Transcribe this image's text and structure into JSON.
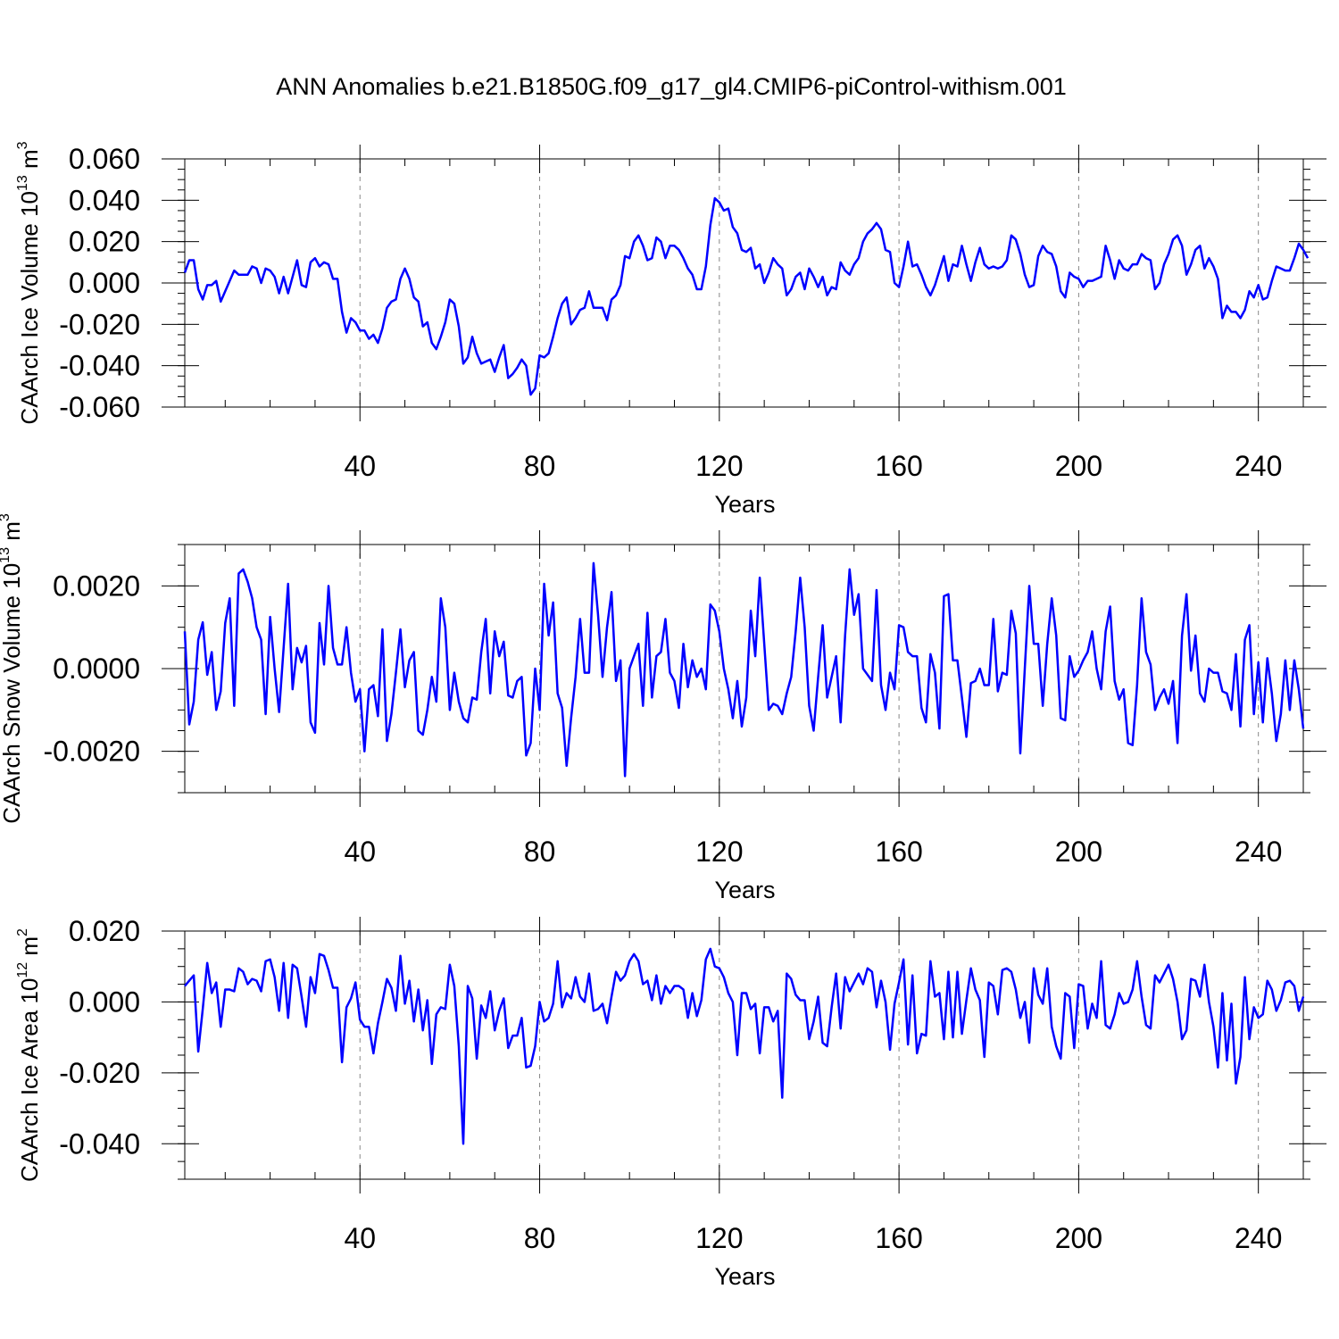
{
  "title": "ANN Anomalies b.e21.B1850G.f09_g17_gl4.CMIP6-piControl-withism.001",
  "colors": {
    "line": "#0000ff",
    "grid": "#888888",
    "axis": "#000000"
  },
  "chart_data": [
    {
      "type": "line",
      "ylabel": "CAArch Ice Volume 10",
      "ylabel_exp": "13",
      "ylabel_unit": " m",
      "ylabel_unit_exp": "3",
      "xlabel": "Years",
      "xlim": [
        1,
        250
      ],
      "ylim": [
        -0.06,
        0.06
      ],
      "xticks": [
        40,
        80,
        120,
        160,
        200,
        240
      ],
      "xtick_labels": [
        "40",
        "80",
        "120",
        "160",
        "200",
        "240"
      ],
      "yticks": [
        -0.06,
        -0.04,
        -0.02,
        0.0,
        0.02,
        0.04,
        0.06
      ],
      "ytick_labels": [
        "-0.060",
        "-0.040",
        "-0.020",
        "0.000",
        "0.020",
        "0.040",
        "0.060"
      ],
      "yminor": 0.005,
      "grid": "dashed vertical at major x ticks",
      "series": [
        {
          "name": "CAArch Ice Volume",
          "values": [
            0.005,
            0.011,
            0.011,
            -0.003,
            -0.008,
            -0.001,
            -0.001,
            0.001,
            -0.009,
            -0.004,
            0.001,
            0.006,
            0.004,
            0.004,
            0.004,
            0.008,
            0.007,
            0.0,
            0.007,
            0.006,
            0.003,
            -0.005,
            0.003,
            -0.005,
            0.003,
            0.011,
            -0.001,
            -0.002,
            0.01,
            0.012,
            0.008,
            0.01,
            0.009,
            0.002,
            0.002,
            -0.014,
            -0.024,
            -0.017,
            -0.019,
            -0.023,
            -0.023,
            -0.027,
            -0.025,
            -0.029,
            -0.022,
            -0.012,
            -0.009,
            -0.008,
            0.002,
            0.007,
            0.002,
            -0.007,
            -0.009,
            -0.021,
            -0.019,
            -0.029,
            -0.032,
            -0.026,
            -0.019,
            -0.008,
            -0.01,
            -0.021,
            -0.039,
            -0.036,
            -0.026,
            -0.034,
            -0.039,
            -0.038,
            -0.037,
            -0.043,
            -0.036,
            -0.03,
            -0.046,
            -0.044,
            -0.041,
            -0.037,
            -0.04,
            -0.054,
            -0.051,
            -0.035,
            -0.036,
            -0.034,
            -0.026,
            -0.017,
            -0.01,
            -0.007,
            -0.02,
            -0.017,
            -0.013,
            -0.012,
            -0.004,
            -0.012,
            -0.012,
            -0.012,
            -0.018,
            -0.008,
            -0.006,
            -0.001,
            0.013,
            0.012,
            0.02,
            0.023,
            0.018,
            0.011,
            0.012,
            0.022,
            0.02,
            0.012,
            0.018,
            0.018,
            0.016,
            0.012,
            0.007,
            0.004,
            -0.003,
            -0.003,
            0.008,
            0.028,
            0.041,
            0.039,
            0.035,
            0.036,
            0.027,
            0.024,
            0.016,
            0.015,
            0.017,
            0.007,
            0.009,
            0.0,
            0.005,
            0.012,
            0.009,
            0.007,
            -0.006,
            -0.003,
            0.003,
            0.005,
            -0.003,
            0.007,
            0.003,
            -0.002,
            0.003,
            -0.006,
            -0.002,
            -0.003,
            0.01,
            0.006,
            0.004,
            0.009,
            0.012,
            0.02,
            0.024,
            0.026,
            0.029,
            0.026,
            0.016,
            0.015,
            0.0,
            -0.002,
            0.008,
            0.02,
            0.008,
            0.009,
            0.004,
            -0.002,
            -0.006,
            -0.001,
            0.006,
            0.013,
            0.001,
            0.009,
            0.008,
            0.018,
            0.009,
            0.001,
            0.01,
            0.017,
            0.009,
            0.007,
            0.008,
            0.007,
            0.008,
            0.011,
            0.023,
            0.021,
            0.014,
            0.004,
            -0.002,
            -0.001,
            0.013,
            0.018,
            0.015,
            0.014,
            0.008,
            -0.004,
            -0.007,
            0.005,
            0.003,
            0.002,
            -0.002,
            0.001,
            0.001,
            0.002,
            0.003,
            0.018,
            0.011,
            0.002,
            0.011,
            0.007,
            0.006,
            0.009,
            0.009,
            0.014,
            0.012,
            0.011,
            -0.003,
            0.0,
            0.009,
            0.014,
            0.021,
            0.023,
            0.018,
            0.004,
            0.009,
            0.016,
            0.018,
            0.007,
            0.012,
            0.008,
            0.002,
            -0.017,
            -0.011,
            -0.014,
            -0.014,
            -0.017,
            -0.013,
            -0.004,
            -0.007,
            -0.001,
            -0.008,
            -0.007,
            0.001,
            0.008,
            0.007,
            0.006,
            0.006,
            0.012,
            0.019,
            0.016,
            0.012
          ]
        }
      ]
    },
    {
      "type": "line",
      "ylabel": "CAArch Snow Volume 10",
      "ylabel_exp": "13",
      "ylabel_unit": " m",
      "ylabel_unit_exp": "3",
      "xlabel": "Years",
      "xlim": [
        1,
        250
      ],
      "ylim": [
        -0.003,
        0.003
      ],
      "xticks": [
        40,
        80,
        120,
        160,
        200,
        240
      ],
      "xtick_labels": [
        "40",
        "80",
        "120",
        "160",
        "200",
        "240"
      ],
      "yticks": [
        -0.002,
        0.0,
        0.002
      ],
      "ytick_labels": [
        "-0.0020",
        "0.0000",
        "0.0020"
      ],
      "yminor": 0.0005,
      "grid": "dashed vertical at major x ticks",
      "series": [
        {
          "name": "CAArch Snow Volume",
          "values": [
            0.0009,
            -0.00135,
            -0.0008,
            0.0007,
            0.00112,
            -0.00015,
            0.0004,
            -0.001,
            -0.00055,
            0.0011,
            0.0017,
            -0.0009,
            0.0023,
            0.0024,
            0.0021,
            0.0017,
            0.001,
            0.0007,
            -0.0011,
            0.00125,
            0.0,
            -0.00105,
            0.0005,
            0.00205,
            -0.0005,
            0.0005,
            0.00015,
            0.00055,
            -0.0013,
            -0.00155,
            0.0011,
            0.0001,
            0.002,
            0.0005,
            0.0001,
            0.0001,
            0.001,
            -0.0001,
            -0.0008,
            -0.0005,
            -0.002,
            -0.0005,
            -0.0004,
            -0.00115,
            0.00095,
            -0.00175,
            -0.0011,
            -0.0001,
            0.00095,
            -0.00045,
            0.0002,
            0.0004,
            -0.0015,
            -0.0016,
            -0.001,
            -0.0002,
            -0.0008,
            0.0017,
            0.001,
            -0.001,
            -0.0001,
            -0.0008,
            -0.0012,
            -0.0013,
            -0.0007,
            -0.00075,
            0.0004,
            0.0012,
            -0.0006,
            0.0009,
            0.0003,
            0.00065,
            -0.00065,
            -0.0007,
            -0.0003,
            -0.0002,
            -0.0021,
            -0.0018,
            0.0,
            -0.001,
            0.00205,
            0.0008,
            0.0016,
            -0.0006,
            -0.00095,
            -0.00235,
            -0.0012,
            -0.0002,
            0.0012,
            -0.0001,
            -0.0001,
            0.00255,
            0.0013,
            -0.0002,
            0.001,
            0.00185,
            -0.0003,
            0.0002,
            -0.0026,
            0.0,
            0.0003,
            0.0006,
            -0.0009,
            0.00135,
            -0.0007,
            0.0003,
            0.0004,
            0.0012,
            -0.0001,
            -0.0003,
            -0.00095,
            0.0006,
            -0.00045,
            0.0002,
            -0.0002,
            0.0,
            -0.0005,
            0.00155,
            0.0014,
            0.0009,
            0.0,
            -0.0005,
            -0.0012,
            -0.0003,
            -0.0014,
            -0.0007,
            0.0014,
            0.0003,
            0.0022,
            0.0006,
            -0.001,
            -0.00085,
            -0.0009,
            -0.0011,
            -0.0006,
            -0.0002,
            0.0009,
            0.0022,
            0.001,
            -0.0009,
            -0.0015,
            -0.0002,
            0.00105,
            -0.0007,
            -0.0002,
            0.0003,
            -0.0013,
            0.0008,
            0.0024,
            0.0013,
            0.0018,
            0.0,
            -0.00015,
            -0.0003,
            0.0019,
            -0.0004,
            -0.001,
            -0.0001,
            -0.0005,
            0.00105,
            0.001,
            0.0004,
            0.0003,
            0.0003,
            -0.00095,
            -0.0013,
            0.00035,
            -0.0001,
            -0.00145,
            0.00175,
            0.0018,
            0.0002,
            0.0002,
            -0.0007,
            -0.00165,
            -0.00035,
            -0.0003,
            0.0,
            -0.0004,
            -0.0004,
            0.0012,
            -0.00055,
            -0.0001,
            -0.00015,
            0.0014,
            0.00085,
            -0.00205,
            0.0,
            0.002,
            0.0006,
            0.0006,
            -0.0009,
            0.0006,
            0.0017,
            0.0008,
            -0.0012,
            -0.00125,
            0.0003,
            -0.0002,
            -5e-05,
            0.0002,
            0.0004,
            0.0009,
            0.0,
            -0.0005,
            0.0009,
            0.0015,
            -0.0003,
            -0.00075,
            -0.0005,
            -0.0018,
            -0.00185,
            -0.0004,
            0.0017,
            0.0004,
            0.0001,
            -0.001,
            -0.0007,
            -0.0005,
            -0.00085,
            -0.0003,
            -0.0018,
            0.0008,
            0.0018,
            -5e-05,
            0.0008,
            -0.0006,
            -0.0008,
            0.0,
            -0.0001,
            -0.0001,
            -0.00055,
            -0.0006,
            -0.001,
            0.00035,
            -0.0014,
            0.0007,
            0.00105,
            -0.0011,
            0.00015,
            -0.0013,
            0.00025,
            -0.0006,
            -0.00175,
            -0.0011,
            0.0002,
            -0.001,
            0.0002,
            -0.0005,
            -0.00145
          ]
        }
      ]
    },
    {
      "type": "line",
      "ylabel": "CAArch Ice Area 10",
      "ylabel_exp": "12",
      "ylabel_unit": " m",
      "ylabel_unit_exp": "2",
      "xlabel": "Years",
      "xlim": [
        1,
        250
      ],
      "ylim": [
        -0.05,
        0.02
      ],
      "xticks": [
        40,
        80,
        120,
        160,
        200,
        240
      ],
      "xtick_labels": [
        "40",
        "80",
        "120",
        "160",
        "200",
        "240"
      ],
      "yticks": [
        -0.04,
        -0.02,
        0.0,
        0.02
      ],
      "ytick_labels": [
        "-0.040",
        "-0.020",
        "0.000",
        "0.020"
      ],
      "yminor": 0.005,
      "grid": "dashed vertical at major x ticks",
      "series": [
        {
          "name": "CAArch Ice Area",
          "values": [
            0.0045,
            0.006,
            0.0075,
            -0.014,
            -0.002,
            0.011,
            0.0025,
            0.0055,
            -0.007,
            0.0035,
            0.0035,
            0.003,
            0.0095,
            0.0085,
            0.005,
            0.0065,
            0.006,
            0.003,
            0.0115,
            0.012,
            0.007,
            -0.0025,
            0.011,
            -0.0045,
            0.0105,
            0.0095,
            0.0015,
            -0.007,
            0.007,
            0.0025,
            0.0135,
            0.013,
            0.009,
            0.004,
            0.004,
            -0.017,
            -0.0015,
            0.001,
            0.0055,
            -0.005,
            -0.007,
            -0.007,
            -0.0145,
            -0.006,
            0.0,
            0.0065,
            0.004,
            -0.0025,
            0.013,
            -0.0005,
            0.006,
            -0.0055,
            0.0035,
            -0.008,
            0.0005,
            -0.0175,
            -0.0035,
            -0.0015,
            -0.002,
            0.0105,
            0.0045,
            -0.0125,
            -0.04,
            0.0045,
            0.001,
            -0.016,
            -0.001,
            -0.0045,
            0.003,
            -0.008,
            -0.0025,
            0.001,
            -0.013,
            -0.0095,
            -0.0095,
            -0.0045,
            -0.0185,
            -0.018,
            -0.0125,
            0.0,
            -0.0055,
            -0.0045,
            -0.0005,
            0.0115,
            -0.0015,
            0.0025,
            0.001,
            0.007,
            0.0015,
            0.0,
            0.008,
            -0.0025,
            -0.002,
            -0.0005,
            -0.006,
            0.0015,
            0.0085,
            0.006,
            0.0075,
            0.0115,
            0.0135,
            0.0115,
            0.005,
            0.006,
            0.0005,
            0.0075,
            -0.0005,
            0.0045,
            0.0025,
            0.0045,
            0.0045,
            0.0035,
            -0.0045,
            0.0025,
            -0.004,
            0.0005,
            0.012,
            0.015,
            0.01,
            0.0095,
            0.007,
            0.0025,
            0.0,
            -0.015,
            0.0025,
            0.0025,
            -0.002,
            -0.0005,
            -0.0145,
            -0.0015,
            -0.0015,
            -0.0055,
            -0.0025,
            -0.027,
            0.008,
            0.0065,
            0.002,
            0.0005,
            0.0005,
            -0.0105,
            -0.0055,
            0.0015,
            -0.0115,
            -0.0125,
            -0.0015,
            0.008,
            -0.0075,
            0.007,
            0.003,
            0.0055,
            0.008,
            0.005,
            0.0095,
            0.0085,
            -0.0015,
            0.006,
            0.0,
            -0.0135,
            -0.0005,
            0.0055,
            0.012,
            -0.012,
            0.0075,
            -0.0145,
            -0.009,
            -0.0095,
            0.0115,
            0.0015,
            0.0025,
            -0.0105,
            0.0085,
            -0.01,
            0.0085,
            -0.009,
            0.0005,
            0.0095,
            0.0035,
            0.0005,
            -0.0155,
            0.0055,
            0.0045,
            -0.0035,
            0.009,
            0.0095,
            0.0085,
            0.0035,
            -0.0045,
            0.0,
            -0.0115,
            0.0095,
            0.002,
            -0.0005,
            0.0095,
            -0.007,
            -0.0125,
            -0.016,
            0.0025,
            0.0015,
            -0.013,
            0.005,
            0.0045,
            -0.0075,
            -0.0005,
            -0.0045,
            0.0115,
            -0.0065,
            -0.0075,
            -0.0035,
            0.0025,
            -0.0005,
            0.0,
            0.0035,
            0.0115,
            0.0015,
            -0.0065,
            -0.0075,
            0.0075,
            0.0055,
            0.008,
            0.0105,
            0.0065,
            0.0,
            -0.0105,
            -0.008,
            0.0065,
            0.006,
            0.0015,
            0.0105,
            0.0,
            -0.007,
            -0.0185,
            0.0025,
            -0.0165,
            -0.0005,
            -0.023,
            -0.0155,
            0.007,
            -0.0105,
            -0.0015,
            -0.0045,
            -0.0035,
            0.006,
            0.0035,
            -0.0025,
            0.0005,
            0.0055,
            0.006,
            0.0045,
            -0.0025,
            0.0015
          ]
        }
      ]
    }
  ]
}
